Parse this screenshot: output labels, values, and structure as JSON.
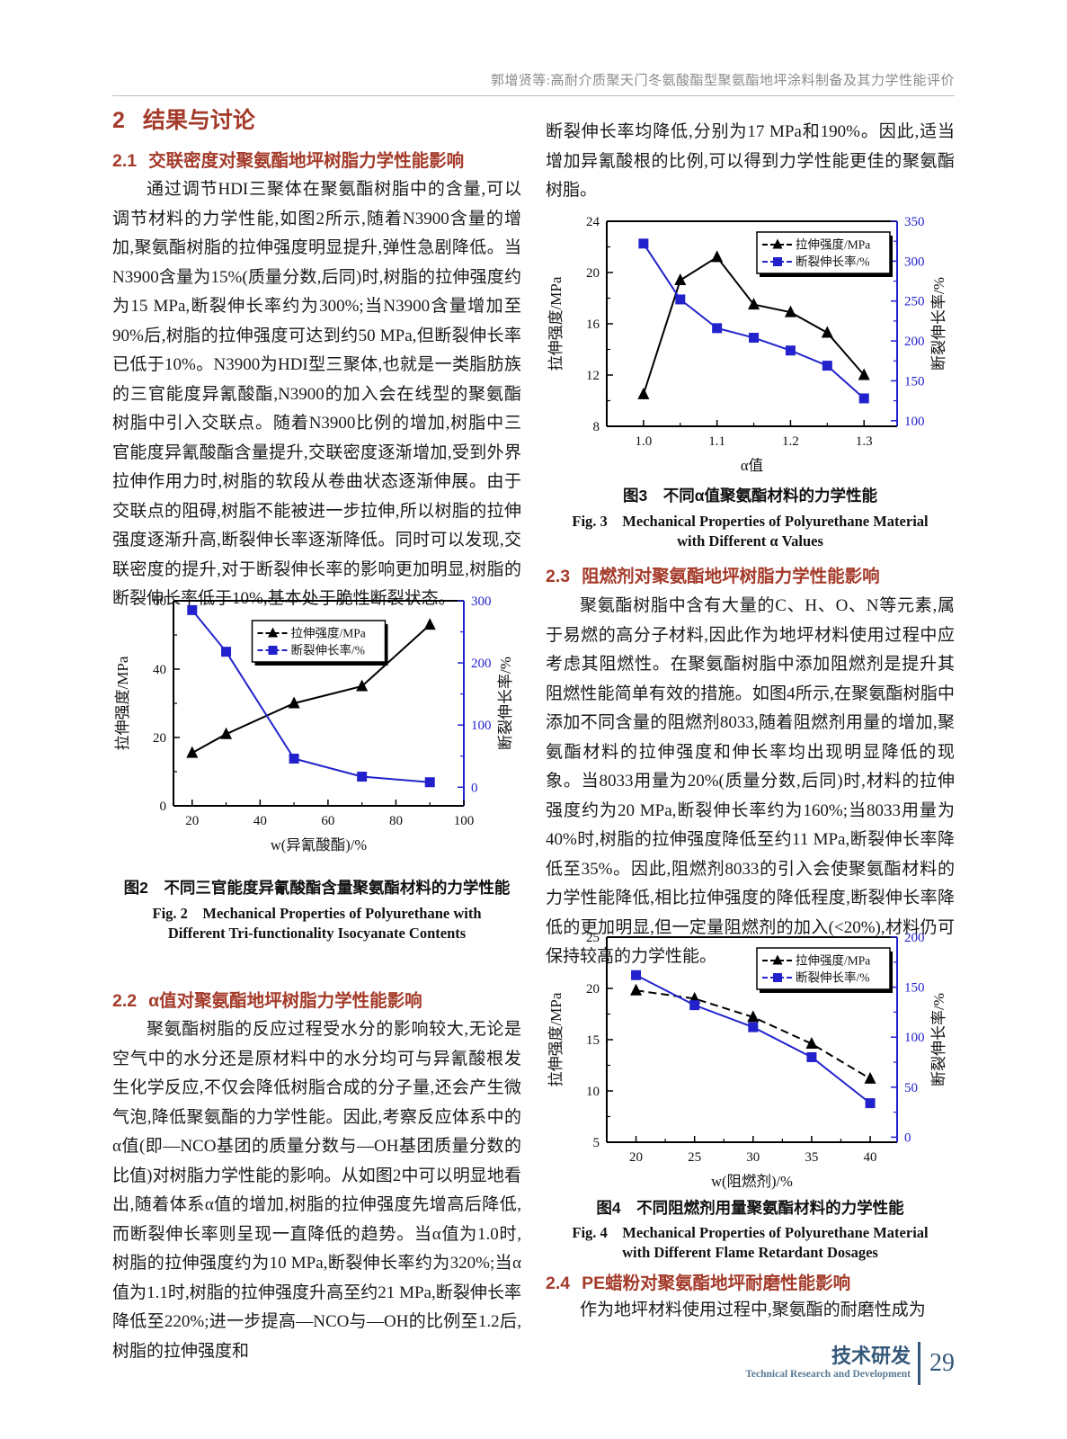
{
  "header": {
    "running_title": "郭增贤等:高耐介质聚天门冬氨酸酯型聚氨酯地坪涂料制备及其力学性能评价"
  },
  "sections": {
    "s2": {
      "num": "2",
      "title": "结果与讨论"
    },
    "s21": {
      "num": "2.1",
      "title": "交联密度对聚氨酯地坪树脂力学性能影响",
      "p1": "通过调节HDI三聚体在聚氨酯树脂中的含量,可以调节材料的力学性能,如图2所示,随着N3900含量的增加,聚氨酯树脂的拉伸强度明显提升,弹性急剧降低。当N3900含量为15%(质量分数,后同)时,树脂的拉伸强度约为15 MPa,断裂伸长率约为300%;当N3900含量增加至90%后,树脂的拉伸强度可达到约50 MPa,但断裂伸长率已低于10%。N3900为HDI型三聚体,也就是一类脂肪族的三官能度异氰酸酯,N3900的加入会在线型的聚氨酯树脂中引入交联点。随着N3900比例的增加,树脂中三官能度异氰酸酯含量提升,交联密度逐渐增加,受到外界拉伸作用力时,树脂的软段从卷曲状态逐渐伸展。由于交联点的阻碍,树脂不能被进一步拉伸,所以树脂的拉伸强度逐渐升高,断裂伸长率逐渐降低。同时可以发现,交联密度的提升,对于断裂伸长率的影响更加明显,树脂的断裂伸长率低于10%,基本处于脆性断裂状态。"
    },
    "s22": {
      "num": "2.2",
      "title": "α值对聚氨酯地坪树脂力学性能影响",
      "p1": "聚氨酯树脂的反应过程受水分的影响较大,无论是空气中的水分还是原材料中的水分均可与异氰酸根发生化学反应,不仅会降低树脂合成的分子量,还会产生微气泡,降低聚氨酯的力学性能。因此,考察反应体系中的α值(即—NCO基团的质量分数与—OH基团质量分数的比值)对树脂力学性能的影响。从如图2中可以明显地看出,随着体系α值的增加,树脂的拉伸强度先增高后降低,而断裂伸长率则呈现一直降低的趋势。当α值为1.0时,树脂的拉伸强度约为10 MPa,断裂伸长率约为320%;当α值为1.1时,树脂的拉伸强度升高至约21 MPa,断裂伸长率降低至220%;进一步提高—NCO与—OH的比例至1.2后,树脂的拉伸强度和"
    },
    "s23": {
      "num": "2.3",
      "title": "阻燃剂对聚氨酯地坪树脂力学性能影响",
      "p1": "聚氨酯树脂中含有大量的C、H、O、N等元素,属于易燃的高分子材料,因此作为地坪材料使用过程中应考虑其阻燃性。在聚氨酯树脂中添加阻燃剂是提升其阻燃性能简单有效的措施。如图4所示,在聚氨酯树脂中添加不同含量的阻燃剂8033,随着阻燃剂用量的增加,聚氨酯材料的拉伸强度和伸长率均出现明显降低的现象。当8033用量为20%(质量分数,后同)时,材料的拉伸强度约为20 MPa,断裂伸长率约为160%;当8033用量为40%时,树脂的拉伸强度降低至约11 MPa,断裂伸长率降低至35%。因此,阻燃剂8033的引入会使聚氨酯材料的力学性能降低,相比拉伸强度的降低程度,断裂伸长率降低的更加明显,但一定量阻燃剂的加入(<20%),材料仍可保持较高的力学性能。"
    },
    "s24": {
      "num": "2.4",
      "title": "PE蜡粉对聚氨酯地坪耐磨性能影响",
      "p1": "作为地坪材料使用过程中,聚氨酯的耐磨性成为"
    },
    "right_top_continuation": "断裂伸长率均降低,分别为17 MPa和190%。因此,适当增加异氰酸根的比例,可以得到力学性能更佳的聚氨酯树脂。"
  },
  "figures": {
    "fig2": {
      "caption_cn": "图2　不同三官能度异氰酸酯含量聚氨酯材料的力学性能",
      "caption_en_1": "Fig. 2　Mechanical Properties of Polyurethane with",
      "caption_en_2": "Different Tri-functionality Isocyanate Contents"
    },
    "fig3": {
      "caption_cn": "图3　不同α值聚氨酯材料的力学性能",
      "caption_en_1": "Fig. 3　Mechanical Properties of Polyurethane Material",
      "caption_en_2": "with Different α Values"
    },
    "fig4": {
      "caption_cn": "图4　不同阻燃剂用量聚氨酯材料的力学性能",
      "caption_en_1": "Fig. 4　Mechanical Properties of Polyurethane Material",
      "caption_en_2": "with Different Flame Retardant Dosages"
    }
  },
  "footer": {
    "section_cn": "技术研发",
    "section_en": "Technical Research and Development",
    "page_number": "29"
  },
  "colors": {
    "accent_heading": "#a43a29",
    "chart_blue": "#2222cc",
    "footer_blue": "#35587a"
  },
  "chart_data": [
    {
      "id": "fig2",
      "type": "line",
      "xlabel": "w(异氰酸酯)/%",
      "x": [
        20,
        30,
        50,
        70,
        90
      ],
      "xlim": [
        14.5,
        100
      ],
      "xticks": [
        20,
        40,
        60,
        80,
        100
      ],
      "xtick_labels": [
        "20",
        "40",
        "60",
        "80",
        "100"
      ],
      "xminor": [
        30,
        50,
        70,
        90
      ],
      "left_axis": {
        "label": "拉伸强度/MPa",
        "lim": [
          0,
          60
        ],
        "ticks": [
          0,
          20,
          40,
          60
        ],
        "color": "#000000"
      },
      "right_axis": {
        "label": "断裂伸长率/%",
        "lim": [
          -30,
          300
        ],
        "ticks": [
          0,
          100,
          200,
          300
        ],
        "color": "#2222cc"
      },
      "series": [
        {
          "name": "拉伸强度/MPa",
          "axis": "left",
          "marker": "triangle",
          "color": "#000000",
          "dash": null,
          "values": [
            15.5,
            21,
            30,
            35,
            53
          ]
        },
        {
          "name": "断裂伸长率/%",
          "axis": "right",
          "marker": "square",
          "color": "#2222cc",
          "dash": null,
          "values": [
            285,
            218,
            46,
            17,
            8
          ]
        }
      ],
      "legend": {
        "position": "top-center"
      }
    },
    {
      "id": "fig3",
      "type": "line",
      "xlabel": "α值",
      "x": [
        1.0,
        1.05,
        1.1,
        1.15,
        1.2,
        1.25,
        1.3
      ],
      "xlim": [
        0.95,
        1.345
      ],
      "xticks": [
        1.0,
        1.1,
        1.2,
        1.3
      ],
      "xtick_labels": [
        "1.0",
        "1.1",
        "1.2",
        "1.3"
      ],
      "xminor": [
        1.05,
        1.15,
        1.25
      ],
      "left_axis": {
        "label": "拉伸强度/MPa",
        "lim": [
          8,
          24
        ],
        "ticks": [
          8,
          12,
          16,
          20,
          24
        ],
        "color": "#000000"
      },
      "right_axis": {
        "label": "断裂伸长率/%",
        "lim": [
          93,
          350
        ],
        "ticks": [
          100,
          150,
          200,
          250,
          300,
          350
        ],
        "color": "#2222cc"
      },
      "series": [
        {
          "name": "拉伸强度/MPa",
          "axis": "left",
          "marker": "triangle",
          "color": "#000000",
          "dash": null,
          "values": [
            10.5,
            19.4,
            21.2,
            17.5,
            16.9,
            15.3,
            12.0
          ]
        },
        {
          "name": "断裂伸长率/%",
          "axis": "right",
          "marker": "square",
          "color": "#2222cc",
          "dash": null,
          "values": [
            322,
            252,
            216,
            204,
            188,
            169,
            128
          ]
        }
      ],
      "legend": {
        "position": "top-right"
      }
    },
    {
      "id": "fig4",
      "type": "line",
      "xlabel": "w(阻燃剂)/%",
      "x": [
        20,
        25,
        30,
        35,
        40
      ],
      "xlim": [
        17.5,
        42.3
      ],
      "xticks": [
        20,
        25,
        30,
        35,
        40
      ],
      "xtick_labels": [
        "20",
        "25",
        "30",
        "35",
        "40"
      ],
      "xminor": [
        22.5,
        27.5,
        32.5,
        37.5
      ],
      "left_axis": {
        "label": "拉伸强度/MPa",
        "lim": [
          5,
          25
        ],
        "ticks": [
          5,
          10,
          15,
          20,
          25
        ],
        "color": "#000000"
      },
      "right_axis": {
        "label": "断裂伸长率/%",
        "lim": [
          -5,
          200
        ],
        "ticks": [
          0,
          50,
          100,
          150,
          200
        ],
        "color": "#2222cc"
      },
      "series": [
        {
          "name": "拉伸强度/MPa",
          "axis": "left",
          "marker": "triangle",
          "color": "#000000",
          "dash": "9 5",
          "values": [
            19.8,
            19.0,
            17.2,
            14.6,
            11.2
          ]
        },
        {
          "name": "断裂伸长率/%",
          "axis": "right",
          "marker": "square",
          "color": "#2222cc",
          "dash": null,
          "values": [
            162,
            132,
            110,
            80,
            34
          ]
        }
      ],
      "legend": {
        "position": "top-right"
      }
    }
  ]
}
